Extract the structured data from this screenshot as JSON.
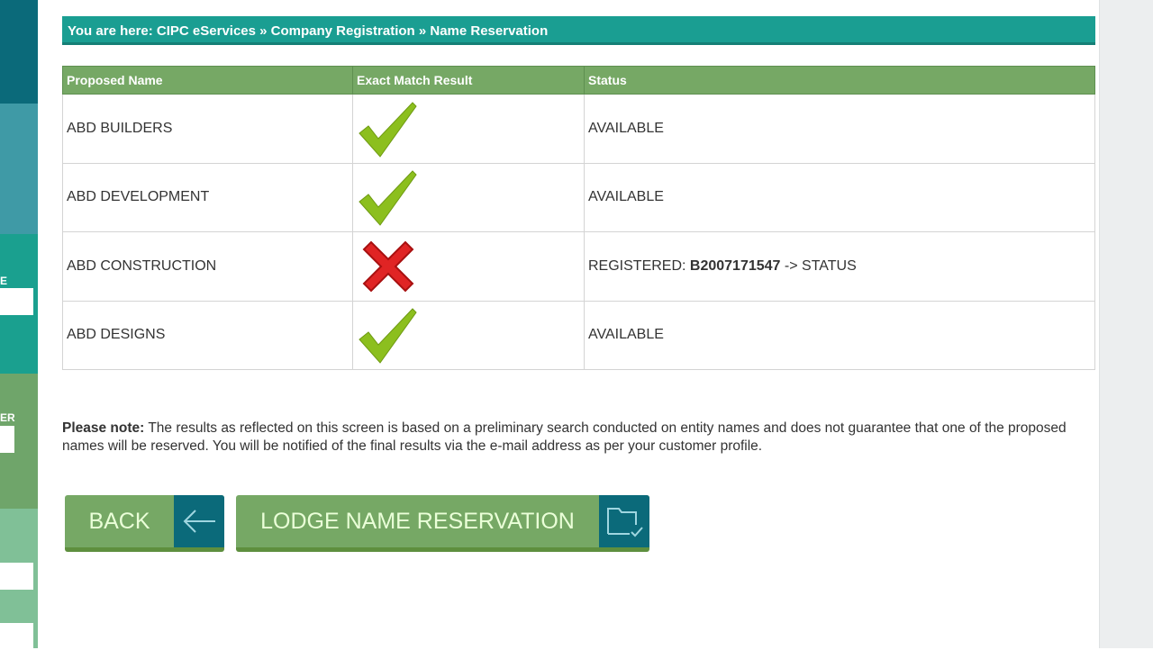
{
  "sidebar": {
    "labels": [
      "E",
      "ER"
    ],
    "colors": [
      "#0b6a7a",
      "#3f9aa6",
      "#1aa08f",
      "#6fa56a",
      "#80c097"
    ]
  },
  "breadcrumb": "You are here: CIPC eServices » Company Registration » Name Reservation",
  "table": {
    "headers": [
      "Proposed Name",
      "Exact Match Result",
      "Status"
    ],
    "rows": [
      {
        "name": "ABD BUILDERS",
        "result": "check-icon",
        "status": "AVAILABLE"
      },
      {
        "name": "ABD DEVELOPMENT",
        "result": "check-icon",
        "status": "AVAILABLE"
      },
      {
        "name": "ABD CONSTRUCTION",
        "result": "cross-icon",
        "status_prefix": "REGISTERED: ",
        "status_number": "B2007171547",
        "status_suffix": " -> STATUS"
      },
      {
        "name": "ABD DESIGNS",
        "result": "check-icon",
        "status": "AVAILABLE"
      }
    ]
  },
  "note": {
    "bold": "Please note:",
    "text": " The results as reflected on this screen is based on a preliminary search conducted on entity names and does not guarantee that one of the proposed names will be reserved. You will be notified of the final results via the e-mail address as per your customer profile."
  },
  "buttons": {
    "back": "BACK",
    "lodge": "LODGE NAME RESERVATION"
  }
}
